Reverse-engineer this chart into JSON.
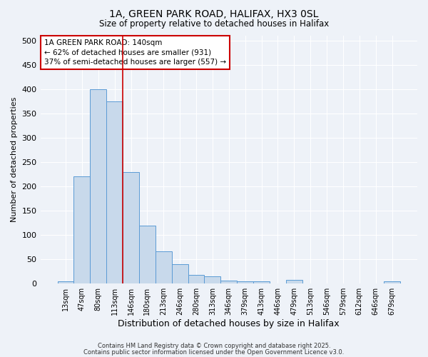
{
  "title_line1": "1A, GREEN PARK ROAD, HALIFAX, HX3 0SL",
  "title_line2": "Size of property relative to detached houses in Halifax",
  "xlabel": "Distribution of detached houses by size in Halifax",
  "ylabel": "Number of detached properties",
  "categories": [
    "13sqm",
    "47sqm",
    "80sqm",
    "113sqm",
    "146sqm",
    "180sqm",
    "213sqm",
    "246sqm",
    "280sqm",
    "313sqm",
    "346sqm",
    "379sqm",
    "413sqm",
    "446sqm",
    "479sqm",
    "513sqm",
    "546sqm",
    "579sqm",
    "612sqm",
    "646sqm",
    "679sqm"
  ],
  "values": [
    5,
    220,
    400,
    375,
    230,
    120,
    67,
    40,
    18,
    15,
    6,
    5,
    5,
    1,
    8,
    1,
    1,
    1,
    1,
    1,
    4
  ],
  "bar_color": "#c8d9eb",
  "bar_edge_color": "#5b9bd5",
  "ylim": [
    0,
    510
  ],
  "yticks": [
    0,
    50,
    100,
    150,
    200,
    250,
    300,
    350,
    400,
    450,
    500
  ],
  "red_line_x": 3.5,
  "annotation_text": "1A GREEN PARK ROAD: 140sqm\n← 62% of detached houses are smaller (931)\n37% of semi-detached houses are larger (557) →",
  "annotation_box_facecolor": "#ffffff",
  "annotation_box_edgecolor": "#cc0000",
  "background_color": "#eef2f8",
  "grid_color": "#ffffff",
  "footer_line1": "Contains HM Land Registry data © Crown copyright and database right 2025.",
  "footer_line2": "Contains public sector information licensed under the Open Government Licence v3.0."
}
